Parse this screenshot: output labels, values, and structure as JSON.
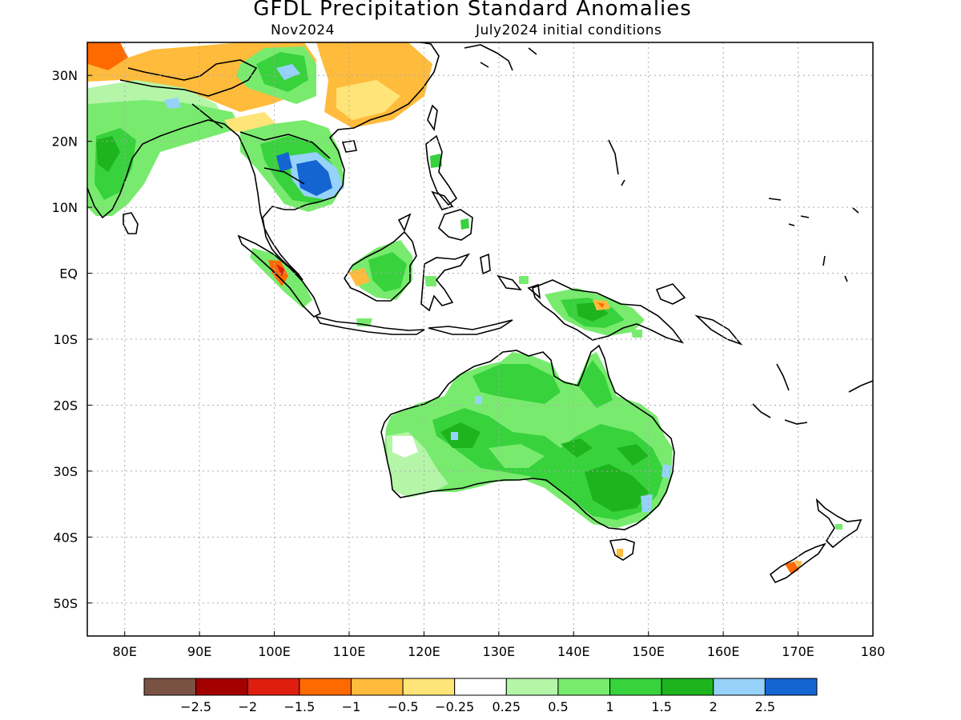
{
  "title": "GFDL Precipitation Standard Anomalies",
  "subtitle_left": "Nov2024",
  "subtitle_right": "July2024 initial conditions",
  "map": {
    "lon_range": [
      75,
      180
    ],
    "lat_range": [
      -55,
      35
    ],
    "lat_labels": [
      {
        "lat": 30,
        "text": "30N"
      },
      {
        "lat": 20,
        "text": "20N"
      },
      {
        "lat": 10,
        "text": "10N"
      },
      {
        "lat": 0,
        "text": "EQ"
      },
      {
        "lat": -10,
        "text": "10S"
      },
      {
        "lat": -20,
        "text": "20S"
      },
      {
        "lat": -30,
        "text": "30S"
      },
      {
        "lat": -40,
        "text": "40S"
      },
      {
        "lat": -50,
        "text": "50S"
      }
    ],
    "lon_labels": [
      {
        "lon": 80,
        "text": "80E"
      },
      {
        "lon": 90,
        "text": "90E"
      },
      {
        "lon": 100,
        "text": "100E"
      },
      {
        "lon": 110,
        "text": "110E"
      },
      {
        "lon": 120,
        "text": "120E"
      },
      {
        "lon": 130,
        "text": "130E"
      },
      {
        "lon": 140,
        "text": "140E"
      },
      {
        "lon": 150,
        "text": "150E"
      },
      {
        "lon": 160,
        "text": "160E"
      },
      {
        "lon": 170,
        "text": "170E"
      },
      {
        "lon": 180,
        "text": "180"
      }
    ],
    "gridlines": "dotted"
  },
  "colorbar": {
    "colors": [
      "#7a5244",
      "#a50000",
      "#e01e0f",
      "#ff6a00",
      "#ffbb3c",
      "#ffe478",
      "#ffffff",
      "#b4f5a8",
      "#78eb6e",
      "#37d23c",
      "#1eb41e",
      "#96d2fa",
      "#1464d2"
    ],
    "labels": [
      "-2.5",
      "-2",
      "-1.5",
      "-1",
      "-0.5",
      "-0.25",
      "0.25",
      "0.5",
      "1",
      "1.5",
      "2",
      "2.5"
    ]
  }
}
